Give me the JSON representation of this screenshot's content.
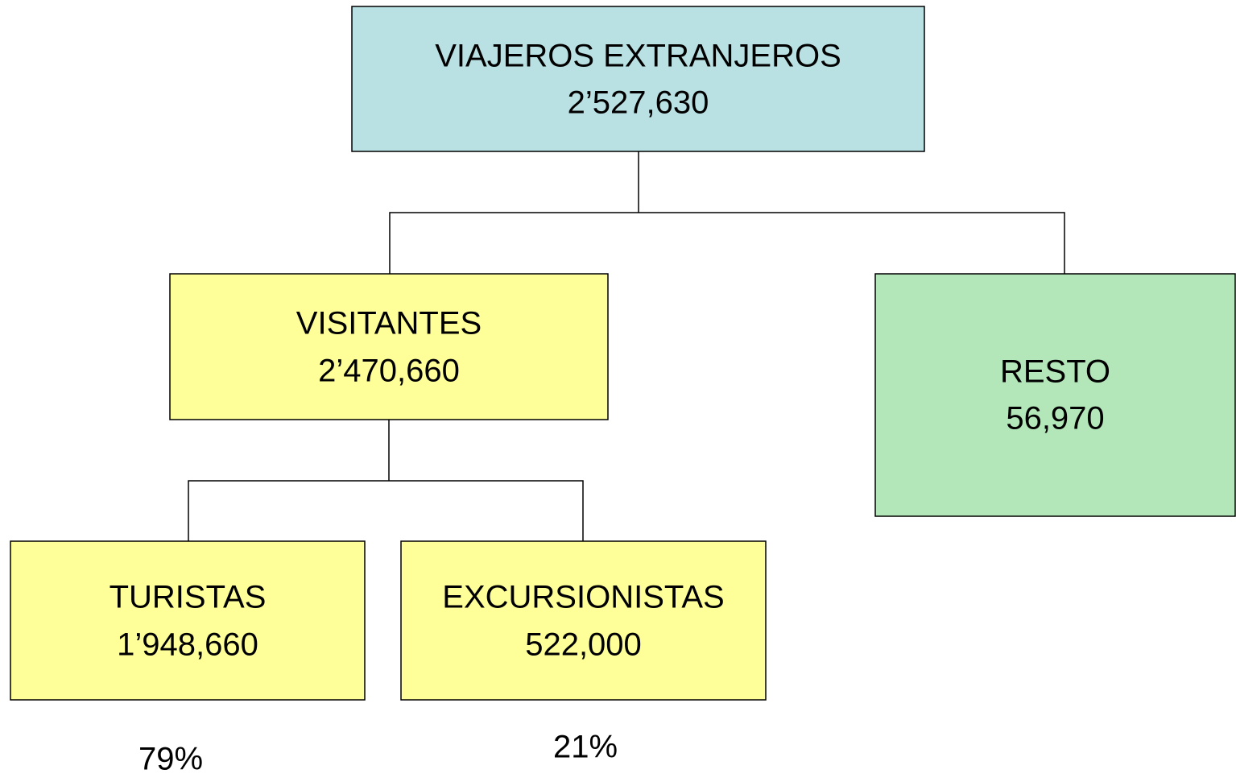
{
  "nodes": [
    {
      "label": "VIAJEROS EXTRANJEROS",
      "value": "2’527,630"
    },
    {
      "label": "VISITANTES",
      "value": "2’470,660"
    },
    {
      "label": "RESTO",
      "value": "56,970"
    },
    {
      "label": "TURISTAS",
      "value": "1’948,660"
    },
    {
      "label": "EXCURSIONISTAS",
      "value": "522,000"
    }
  ],
  "shares": [
    "79%",
    "21%"
  ]
}
